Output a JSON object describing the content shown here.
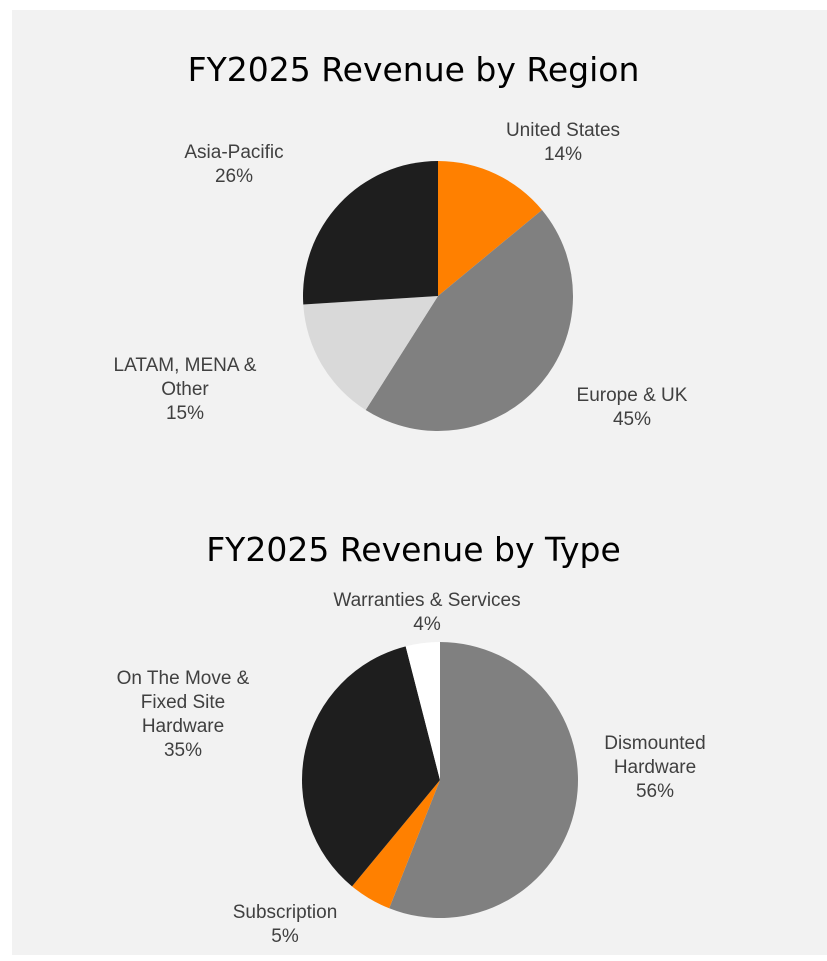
{
  "chart_data": [
    {
      "type": "pie",
      "title": "FY2025 Revenue by Region",
      "categories": [
        "United States",
        "Europe & UK",
        "LATAM, MENA & Other",
        "Asia-Pacific"
      ],
      "values": [
        14,
        45,
        15,
        26
      ],
      "value_labels": [
        "14%",
        "45%",
        "15%",
        "26%"
      ],
      "colors": [
        "#ff8000",
        "#808080",
        "#d9d9d9",
        "#1e1e1e"
      ]
    },
    {
      "type": "pie",
      "title": "FY2025 Revenue by Type",
      "categories": [
        "Dismounted Hardware",
        "Subscription",
        "On The Move & Fixed Site Hardware",
        "Warranties & Services"
      ],
      "values": [
        56,
        5,
        35,
        4
      ],
      "value_labels": [
        "56%",
        "5%",
        "35%",
        "4%"
      ],
      "colors": [
        "#808080",
        "#ff8000",
        "#1e1e1e",
        "#ffffff"
      ]
    }
  ]
}
